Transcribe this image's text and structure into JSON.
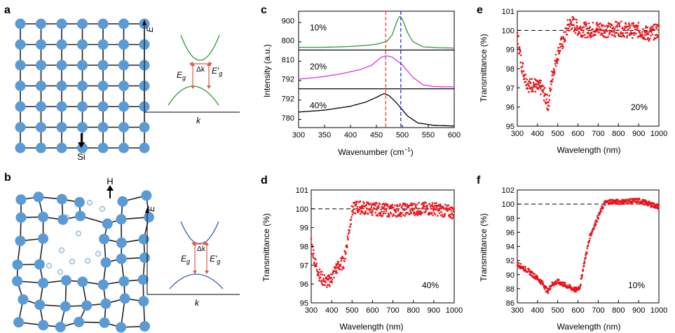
{
  "panel_letters": {
    "a": "a",
    "b": "b",
    "c": "c",
    "d": "d",
    "e": "e",
    "f": "f"
  },
  "atoms": {
    "si": "Si",
    "h": "H"
  },
  "band": {
    "e_axis": "E",
    "k_axis": "k",
    "delta_k": "Δk",
    "eg_main": "E",
    "eg_sub": "g",
    "eg_prime_main": "E′",
    "eg_prime_sub": "g"
  },
  "colors": {
    "lattice_node": "#5b9bd5",
    "h_atom": "#e8f2fa",
    "band_green": "#2e9a3a",
    "band_blue": "#3a58d8",
    "arrow_red": "#e05a3a",
    "data_red": "#e8141a",
    "magenta": "#e030e0",
    "red_dash": "#ff3b3b",
    "blue_dash": "#2b2bff"
  },
  "chart_data": [
    {
      "panel": "c",
      "type": "line",
      "xlabel": "Wavenumber (cm",
      "xlabel_sup": "−1",
      "xlabel_end": ")",
      "ylabel": "Intensity (a.u.)",
      "xlim": [
        300,
        600
      ],
      "xticks": [
        "300",
        "350",
        "400",
        "450",
        "500",
        "550",
        "600"
      ],
      "vlines": [
        468,
        497
      ],
      "subplots": [
        {
          "label": "10%",
          "color": "#2e9a3a",
          "yticks": [
            "900",
            "800"
          ],
          "x": [
            300,
            350,
            400,
            430,
            450,
            470,
            480,
            490,
            495,
            500,
            510,
            520,
            540,
            570,
            600
          ],
          "y": [
            0.07,
            0.07,
            0.09,
            0.12,
            0.15,
            0.22,
            0.38,
            0.75,
            0.88,
            0.8,
            0.45,
            0.22,
            0.08,
            0.06,
            0.05
          ]
        },
        {
          "label": "20%",
          "color": "#e030e0",
          "yticks": [
            "810",
            "792"
          ],
          "x": [
            300,
            340,
            380,
            420,
            440,
            460,
            470,
            480,
            500,
            520,
            540,
            560,
            580,
            600
          ],
          "y": [
            0.25,
            0.3,
            0.38,
            0.5,
            0.6,
            0.82,
            0.85,
            0.82,
            0.62,
            0.3,
            0.1,
            0.06,
            0.05,
            0.05
          ]
        },
        {
          "label": "40%",
          "color": "#000000",
          "yticks": [
            "792",
            "780"
          ],
          "x": [
            300,
            350,
            400,
            430,
            450,
            465,
            475,
            490,
            510,
            530,
            560,
            580,
            600
          ],
          "y": [
            0.4,
            0.45,
            0.55,
            0.66,
            0.78,
            0.88,
            0.82,
            0.62,
            0.3,
            0.12,
            0.06,
            0.05,
            0.04
          ]
        }
      ]
    },
    {
      "panel": "e",
      "type": "scatter",
      "annotation": "20%",
      "xlabel": "Wavelength (nm)",
      "ylabel": "Transmittance (%)",
      "xlim": [
        300,
        1000
      ],
      "ylim": [
        95,
        101
      ],
      "ref_line": 100,
      "xticks": [
        "300",
        "400",
        "500",
        "600",
        "700",
        "800",
        "900",
        "1000"
      ],
      "yticks": [
        "95",
        "96",
        "97",
        "98",
        "99",
        "100",
        "101"
      ],
      "x": [
        300,
        320,
        340,
        360,
        380,
        400,
        420,
        440,
        455,
        470,
        490,
        510,
        530,
        550,
        570,
        600,
        650,
        700,
        750,
        800,
        850,
        900,
        950,
        1000
      ],
      "y": [
        99.8,
        98.3,
        97.5,
        97.1,
        97.2,
        97.0,
        97.0,
        96.5,
        96.1,
        97.5,
        98.4,
        99.1,
        99.5,
        100.2,
        100.4,
        100.1,
        100.0,
        100.1,
        100.0,
        100.1,
        100.0,
        100.0,
        99.8,
        100.0
      ],
      "noise": 0.4
    },
    {
      "panel": "d",
      "type": "scatter",
      "annotation": "40%",
      "xlabel": "Wavelength (nm)",
      "ylabel": "Transmittance  (%)",
      "xlim": [
        300,
        1000
      ],
      "ylim": [
        95,
        101
      ],
      "ref_line": 100,
      "xticks": [
        "300",
        "400",
        "500",
        "600",
        "700",
        "800",
        "900",
        "1000"
      ],
      "yticks": [
        "95",
        "96",
        "97",
        "98",
        "99",
        "100",
        "101"
      ],
      "x": [
        300,
        320,
        340,
        360,
        380,
        400,
        420,
        440,
        460,
        480,
        500,
        520,
        600,
        700,
        800,
        900,
        1000
      ],
      "y": [
        98.2,
        97.1,
        96.5,
        96.2,
        96.1,
        96.3,
        96.8,
        97.0,
        97.2,
        98.5,
        99.9,
        100.1,
        100.0,
        99.9,
        100.0,
        100.0,
        99.8
      ],
      "noise": 0.35
    },
    {
      "panel": "f",
      "type": "scatter",
      "annotation": "10%",
      "xlabel": "Wavelength (nm)",
      "ylabel": "Transmittance (%)",
      "xlim": [
        300,
        1000
      ],
      "ylim": [
        86,
        102
      ],
      "ref_line": 100,
      "xticks": [
        "300",
        "400",
        "500",
        "600",
        "700",
        "800",
        "900",
        "1000"
      ],
      "yticks": [
        "86",
        "88",
        "90",
        "92",
        "94",
        "96",
        "98",
        "100",
        "102"
      ],
      "x": [
        300,
        350,
        400,
        430,
        450,
        470,
        500,
        530,
        560,
        590,
        610,
        630,
        660,
        700,
        730,
        760,
        800,
        900,
        1000
      ],
      "y": [
        91.5,
        90.6,
        89.5,
        88.6,
        87.6,
        88.6,
        89.0,
        88.6,
        88.2,
        87.8,
        88.3,
        91.5,
        95.5,
        98.2,
        100.1,
        100.4,
        100.3,
        100.5,
        99.6
      ],
      "noise": 0.35
    }
  ]
}
